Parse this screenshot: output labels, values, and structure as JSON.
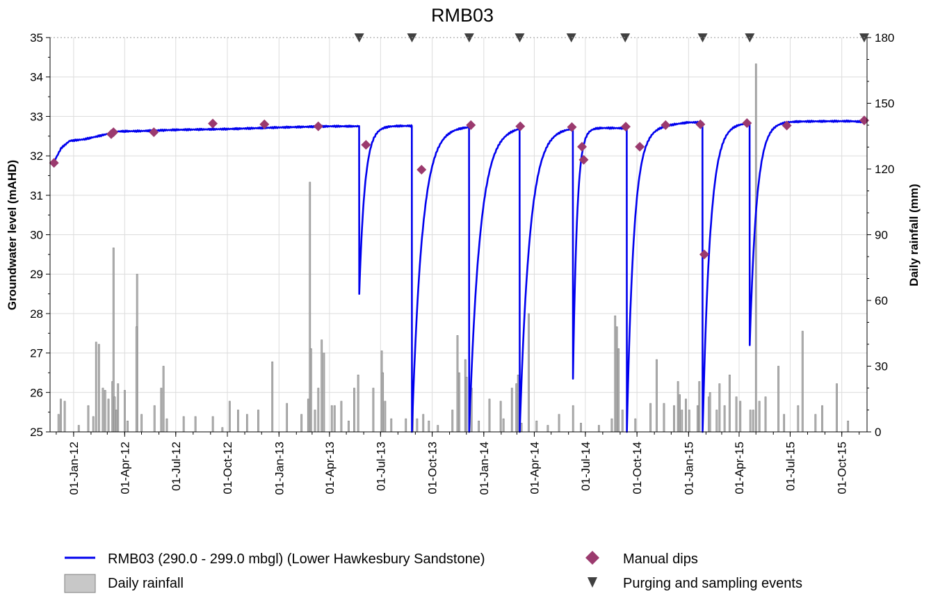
{
  "chart_data": {
    "type": "line",
    "title": "RMB03",
    "ylabel": "Groundwater level (mAHD)",
    "y2label": "Daily rainfall (mm)",
    "ylim": [
      25,
      35
    ],
    "y2lim": [
      0,
      180
    ],
    "yticks": [
      "25",
      "26",
      "27",
      "28",
      "29",
      "30",
      "31",
      "32",
      "33",
      "34",
      "35"
    ],
    "y2ticks": [
      "0",
      "30",
      "60",
      "90",
      "120",
      "150",
      "180"
    ],
    "xlim": [
      "2011-11-20",
      "2015-11-15"
    ],
    "xticks": [
      {
        "date": "2012-01-01",
        "label": "01-Jan-12"
      },
      {
        "date": "2012-04-01",
        "label": "01-Apr-12"
      },
      {
        "date": "2012-07-01",
        "label": "01-Jul-12"
      },
      {
        "date": "2012-10-01",
        "label": "01-Oct-12"
      },
      {
        "date": "2013-01-01",
        "label": "01-Jan-13"
      },
      {
        "date": "2013-04-01",
        "label": "01-Apr-13"
      },
      {
        "date": "2013-07-01",
        "label": "01-Jul-13"
      },
      {
        "date": "2013-10-01",
        "label": "01-Oct-13"
      },
      {
        "date": "2014-01-01",
        "label": "01-Jan-14"
      },
      {
        "date": "2014-04-01",
        "label": "01-Apr-14"
      },
      {
        "date": "2014-07-01",
        "label": "01-Jul-14"
      },
      {
        "date": "2014-10-01",
        "label": "01-Oct-14"
      },
      {
        "date": "2015-01-01",
        "label": "01-Jan-15"
      },
      {
        "date": "2015-04-01",
        "label": "01-Apr-15"
      },
      {
        "date": "2015-07-01",
        "label": "01-Jul-15"
      },
      {
        "date": "2015-10-01",
        "label": "01-Oct-15"
      }
    ],
    "grid": true,
    "legend_position": "bottom",
    "legend": {
      "groundwater": "RMB03 (290.0 - 299.0 mbgl) (Lower Hawkesbury Sandstone)",
      "rainfall": "Daily rainfall",
      "manual_dips": "Manual dips",
      "purging": "Purging and sampling events"
    },
    "colors": {
      "groundwater": "#0000ee",
      "manual_dips": "#9b3a6e",
      "purging": "#404040",
      "rainfall_fill": "#b4b4b4",
      "rainfall_stroke": "#7f7f7f",
      "grid": "#dcdcdc"
    },
    "groundwater_series": {
      "name": "RMB03 (290.0 - 299.0 mbgl) (Lower Hawkesbury Sandstone)",
      "base_points": [
        [
          "2011-11-27",
          31.85
        ],
        [
          "2011-12-10",
          32.2
        ],
        [
          "2011-12-25",
          32.38
        ],
        [
          "2012-01-20",
          32.42
        ],
        [
          "2012-02-20",
          32.52
        ],
        [
          "2012-03-20",
          32.62
        ],
        [
          "2012-05-01",
          32.63
        ],
        [
          "2012-07-01",
          32.66
        ],
        [
          "2012-10-01",
          32.68
        ],
        [
          "2013-01-01",
          32.72
        ],
        [
          "2013-04-01",
          32.75
        ],
        [
          "2013-05-22",
          32.75
        ],
        [
          "2013-05-25",
          32.76
        ],
        [
          "2013-08-25",
          32.76
        ],
        [
          "2013-12-05",
          32.75
        ],
        [
          "2014-03-05",
          32.75
        ],
        [
          "2014-06-10",
          32.72
        ],
        [
          "2014-09-10",
          32.7
        ],
        [
          "2014-10-20",
          32.72
        ],
        [
          "2015-01-01",
          32.85
        ],
        [
          "2015-04-05",
          32.84
        ],
        [
          "2015-06-01",
          32.87
        ],
        [
          "2015-10-15",
          32.88
        ],
        [
          "2015-11-12",
          32.86
        ]
      ],
      "drawdowns": [
        {
          "date": "2013-05-24",
          "min": 28.5,
          "recovery_days": 45
        },
        {
          "date": "2013-08-26",
          "min": 25.0,
          "recovery_days": 80
        },
        {
          "date": "2013-12-06",
          "min": 25.0,
          "recovery_days": 85
        },
        {
          "date": "2014-03-06",
          "min": 25.0,
          "recovery_days": 80
        },
        {
          "date": "2014-06-09",
          "min": 26.35,
          "recovery_days": 32
        },
        {
          "date": "2014-09-13",
          "min": 25.0,
          "recovery_days": 55
        },
        {
          "date": "2015-01-26",
          "min": 25.0,
          "recovery_days": 60
        },
        {
          "date": "2015-04-20",
          "min": 27.2,
          "recovery_days": 55
        }
      ]
    },
    "manual_dips": [
      {
        "date": "2011-11-27",
        "y": 31.82
      },
      {
        "date": "2012-03-08",
        "y": 32.55
      },
      {
        "date": "2012-03-12",
        "y": 32.6
      },
      {
        "date": "2012-05-23",
        "y": 32.6
      },
      {
        "date": "2012-09-05",
        "y": 32.82
      },
      {
        "date": "2012-12-06",
        "y": 32.8
      },
      {
        "date": "2013-03-12",
        "y": 32.75
      },
      {
        "date": "2013-06-05",
        "y": 32.28
      },
      {
        "date": "2013-09-12",
        "y": 31.65
      },
      {
        "date": "2013-12-09",
        "y": 32.78
      },
      {
        "date": "2014-03-07",
        "y": 32.75
      },
      {
        "date": "2014-06-07",
        "y": 32.73
      },
      {
        "date": "2014-06-25",
        "y": 32.23
      },
      {
        "date": "2014-06-28",
        "y": 31.9
      },
      {
        "date": "2014-09-11",
        "y": 32.74
      },
      {
        "date": "2014-10-06",
        "y": 32.23
      },
      {
        "date": "2014-11-21",
        "y": 32.78
      },
      {
        "date": "2015-01-22",
        "y": 32.8
      },
      {
        "date": "2015-01-29",
        "y": 29.5
      },
      {
        "date": "2015-04-15",
        "y": 32.83
      },
      {
        "date": "2015-06-25",
        "y": 32.77
      },
      {
        "date": "2015-11-10",
        "y": 32.9
      }
    ],
    "purging_events": [
      "2013-05-24",
      "2013-08-26",
      "2013-12-06",
      "2014-03-06",
      "2014-06-06",
      "2014-09-10",
      "2015-01-26",
      "2015-04-20",
      "2015-11-10"
    ],
    "rainfall_series": {
      "name": "Daily rainfall",
      "values": [
        [
          "2011-12-05",
          8
        ],
        [
          "2011-12-09",
          15
        ],
        [
          "2011-12-16",
          14
        ],
        [
          "2012-01-10",
          3
        ],
        [
          "2012-01-27",
          12
        ],
        [
          "2012-02-05",
          7
        ],
        [
          "2012-02-10",
          41
        ],
        [
          "2012-02-15",
          40
        ],
        [
          "2012-02-22",
          20
        ],
        [
          "2012-02-26",
          19
        ],
        [
          "2012-03-03",
          15
        ],
        [
          "2012-03-10",
          23
        ],
        [
          "2012-03-12",
          84
        ],
        [
          "2012-03-14",
          16
        ],
        [
          "2012-03-17",
          10
        ],
        [
          "2012-03-20",
          22
        ],
        [
          "2012-04-01",
          19
        ],
        [
          "2012-04-06",
          5
        ],
        [
          "2012-04-23",
          72
        ],
        [
          "2012-04-22",
          48
        ],
        [
          "2012-05-01",
          8
        ],
        [
          "2012-05-24",
          12
        ],
        [
          "2012-06-05",
          20
        ],
        [
          "2012-06-09",
          30
        ],
        [
          "2012-06-15",
          6
        ],
        [
          "2012-07-15",
          7
        ],
        [
          "2012-08-05",
          7
        ],
        [
          "2012-09-05",
          7
        ],
        [
          "2012-09-22",
          2
        ],
        [
          "2012-10-05",
          14
        ],
        [
          "2012-10-20",
          10
        ],
        [
          "2012-11-05",
          8
        ],
        [
          "2012-11-25",
          10
        ],
        [
          "2012-12-20",
          32
        ],
        [
          "2013-01-15",
          13
        ],
        [
          "2013-02-10",
          8
        ],
        [
          "2013-02-22",
          15
        ],
        [
          "2013-02-25",
          114
        ],
        [
          "2013-02-27",
          38
        ],
        [
          "2013-03-06",
          10
        ],
        [
          "2013-03-12",
          20
        ],
        [
          "2013-03-18",
          42
        ],
        [
          "2013-03-22",
          36
        ],
        [
          "2013-04-05",
          12
        ],
        [
          "2013-04-10",
          12
        ],
        [
          "2013-04-22",
          14
        ],
        [
          "2013-05-05",
          5
        ],
        [
          "2013-05-15",
          20
        ],
        [
          "2013-05-22",
          26
        ],
        [
          "2013-06-18",
          20
        ],
        [
          "2013-07-03",
          37
        ],
        [
          "2013-07-05",
          27
        ],
        [
          "2013-07-09",
          14
        ],
        [
          "2013-07-20",
          6
        ],
        [
          "2013-08-15",
          6
        ],
        [
          "2013-08-27",
          17
        ],
        [
          "2013-09-04",
          6
        ],
        [
          "2013-09-15",
          8
        ],
        [
          "2013-09-25",
          5
        ],
        [
          "2013-10-11",
          3
        ],
        [
          "2013-11-06",
          10
        ],
        [
          "2013-11-15",
          44
        ],
        [
          "2013-11-18",
          27
        ],
        [
          "2013-11-29",
          33
        ],
        [
          "2013-12-01",
          25
        ],
        [
          "2013-12-10",
          20
        ],
        [
          "2013-12-23",
          5
        ],
        [
          "2014-01-11",
          15
        ],
        [
          "2014-01-31",
          14
        ],
        [
          "2014-02-05",
          6
        ],
        [
          "2014-02-20",
          20
        ],
        [
          "2014-02-28",
          22
        ],
        [
          "2014-03-03",
          26
        ],
        [
          "2014-03-09",
          4
        ],
        [
          "2014-03-22",
          54
        ],
        [
          "2014-04-05",
          5
        ],
        [
          "2014-04-25",
          3
        ],
        [
          "2014-05-15",
          8
        ],
        [
          "2014-06-09",
          12
        ],
        [
          "2014-06-23",
          4
        ],
        [
          "2014-07-25",
          3
        ],
        [
          "2014-08-17",
          6
        ],
        [
          "2014-08-23",
          53
        ],
        [
          "2014-08-26",
          48
        ],
        [
          "2014-08-29",
          38
        ],
        [
          "2014-09-05",
          10
        ],
        [
          "2014-09-28",
          6
        ],
        [
          "2014-10-25",
          13
        ],
        [
          "2014-11-05",
          33
        ],
        [
          "2014-11-18",
          13
        ],
        [
          "2014-12-06",
          12
        ],
        [
          "2014-12-13",
          23
        ],
        [
          "2014-12-16",
          17
        ],
        [
          "2014-12-20",
          10
        ],
        [
          "2014-12-27",
          15
        ],
        [
          "2015-01-02",
          10
        ],
        [
          "2015-01-17",
          12
        ],
        [
          "2015-01-20",
          23
        ],
        [
          "2015-02-06",
          16
        ],
        [
          "2015-02-08",
          18
        ],
        [
          "2015-02-20",
          10
        ],
        [
          "2015-02-25",
          22
        ],
        [
          "2015-03-06",
          12
        ],
        [
          "2015-03-15",
          26
        ],
        [
          "2015-03-27",
          16
        ],
        [
          "2015-04-03",
          14
        ],
        [
          "2015-04-21",
          10
        ],
        [
          "2015-04-26",
          10
        ],
        [
          "2015-05-01",
          168
        ],
        [
          "2015-05-07",
          14
        ],
        [
          "2015-05-18",
          16
        ],
        [
          "2015-06-10",
          30
        ],
        [
          "2015-06-20",
          8
        ],
        [
          "2015-07-15",
          12
        ],
        [
          "2015-07-23",
          46
        ],
        [
          "2015-08-15",
          8
        ],
        [
          "2015-08-27",
          12
        ],
        [
          "2015-09-22",
          22
        ],
        [
          "2015-10-12",
          5
        ]
      ]
    }
  }
}
